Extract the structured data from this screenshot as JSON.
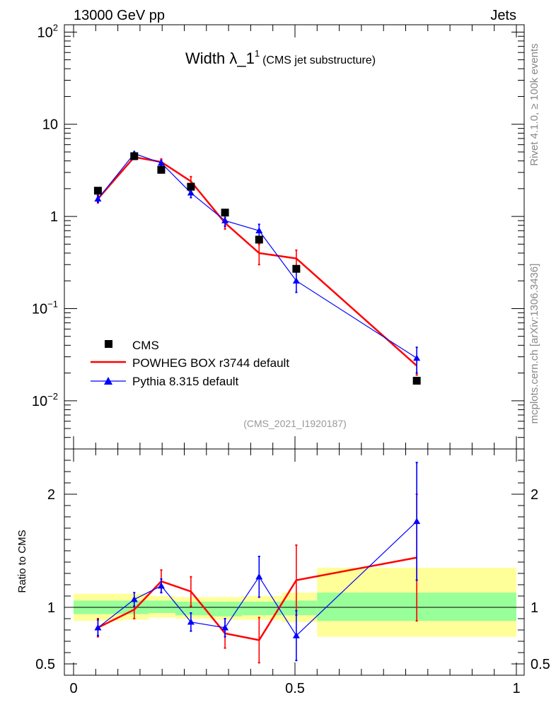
{
  "header": {
    "left": "13000 GeV pp",
    "right": "Jets"
  },
  "title": {
    "main": "Width λ_1",
    "sup": "1",
    "sub": "(CMS jet substructure)"
  },
  "side_labels": {
    "top": "Rivet 4.1.0, ≥ 100k events",
    "bottom": "mcplots.cern.ch [arXiv:1306.3436]"
  },
  "analysis_id": "(CMS_2021_I1920187)",
  "colors": {
    "cms": "#000000",
    "powheg": "#ff0000",
    "pythia": "#0000ff",
    "band_inner": "#99ff99",
    "band_outer": "#ffff99"
  },
  "legend": [
    {
      "name": "CMS",
      "marker": "square"
    },
    {
      "name": "POWHEG BOX r3744 default",
      "marker": "line"
    },
    {
      "name": "Pythia 8.315 default",
      "marker": "triangle"
    }
  ],
  "main_axis": {
    "tick_exps": [
      -2,
      -1,
      0,
      1,
      2
    ],
    "tick_labels": [
      "10",
      "10",
      "1",
      "10",
      "10"
    ],
    "tick_sups": [
      "−2",
      "−1",
      "",
      "",
      "2"
    ]
  },
  "ratio_axis": {
    "ylabel": "Ratio to CMS",
    "ticks": [
      0.5,
      1,
      2
    ],
    "tick_labels": [
      "0.5",
      "1",
      "2"
    ]
  },
  "x_axis": {
    "ticks": [
      0,
      0.5,
      1
    ],
    "tick_labels": [
      "0",
      "0.5",
      "1"
    ]
  },
  "chart_data": {
    "type": "line",
    "title": "Width λ_1^1 (CMS jet substructure)",
    "xlabel": "",
    "ylabel_main": "",
    "ylabel_ratio": "Ratio to CMS",
    "xlim": [
      0,
      1
    ],
    "ylim_main": [
      0.003,
      120
    ],
    "ylim_ratio": [
      0.4,
      2.4
    ],
    "bins": [
      [
        0,
        0.11
      ],
      [
        0.11,
        0.17
      ],
      [
        0.17,
        0.23
      ],
      [
        0.23,
        0.31
      ],
      [
        0.31,
        0.38
      ],
      [
        0.38,
        0.47
      ],
      [
        0.47,
        0.55
      ],
      [
        0.55,
        1.0
      ]
    ],
    "x": [
      0.055,
      0.137,
      0.198,
      0.265,
      0.342,
      0.419,
      0.503,
      0.775
    ],
    "series": [
      {
        "name": "CMS",
        "values": [
          1.9,
          4.5,
          3.2,
          2.1,
          1.1,
          0.56,
          0.27,
          0.0165
        ],
        "band_inner": [
          [
            0.94,
            1.06
          ],
          [
            0.94,
            1.06
          ],
          [
            0.95,
            1.06
          ],
          [
            0.93,
            1.05
          ],
          [
            0.92,
            1.05
          ],
          [
            0.93,
            1.05
          ],
          [
            0.93,
            1.06
          ],
          [
            0.88,
            1.13
          ]
        ],
        "band_outer": [
          [
            0.88,
            1.12
          ],
          [
            0.89,
            1.12
          ],
          [
            0.91,
            1.1
          ],
          [
            0.9,
            1.09
          ],
          [
            0.89,
            1.09
          ],
          [
            0.89,
            1.1
          ],
          [
            0.87,
            1.13
          ],
          [
            0.74,
            1.35
          ]
        ]
      },
      {
        "name": "POWHEG BOX r3744 default",
        "values": [
          1.55,
          4.4,
          3.9,
          2.4,
          0.85,
          0.4,
          0.35,
          0.024
        ],
        "err": [
          0.15,
          0.25,
          0.3,
          0.3,
          0.12,
          0.1,
          0.08,
          0.005
        ],
        "ratio": [
          0.82,
          0.98,
          1.23,
          1.14,
          0.77,
          0.71,
          1.24,
          1.44
        ],
        "ratio_err": [
          0.08,
          0.08,
          0.1,
          0.13,
          0.13,
          0.2,
          0.31,
          0.56
        ]
      },
      {
        "name": "Pythia 8.315 default",
        "values": [
          1.55,
          4.8,
          3.8,
          1.8,
          0.9,
          0.7,
          0.2,
          0.029
        ],
        "err": [
          0.12,
          0.2,
          0.25,
          0.2,
          0.12,
          0.12,
          0.05,
          0.009
        ],
        "ratio": [
          0.82,
          1.07,
          1.19,
          0.87,
          0.82,
          1.27,
          0.75,
          1.76
        ],
        "ratio_err": [
          0.07,
          0.06,
          0.06,
          0.08,
          0.08,
          0.18,
          0.22,
          0.52
        ]
      }
    ]
  }
}
